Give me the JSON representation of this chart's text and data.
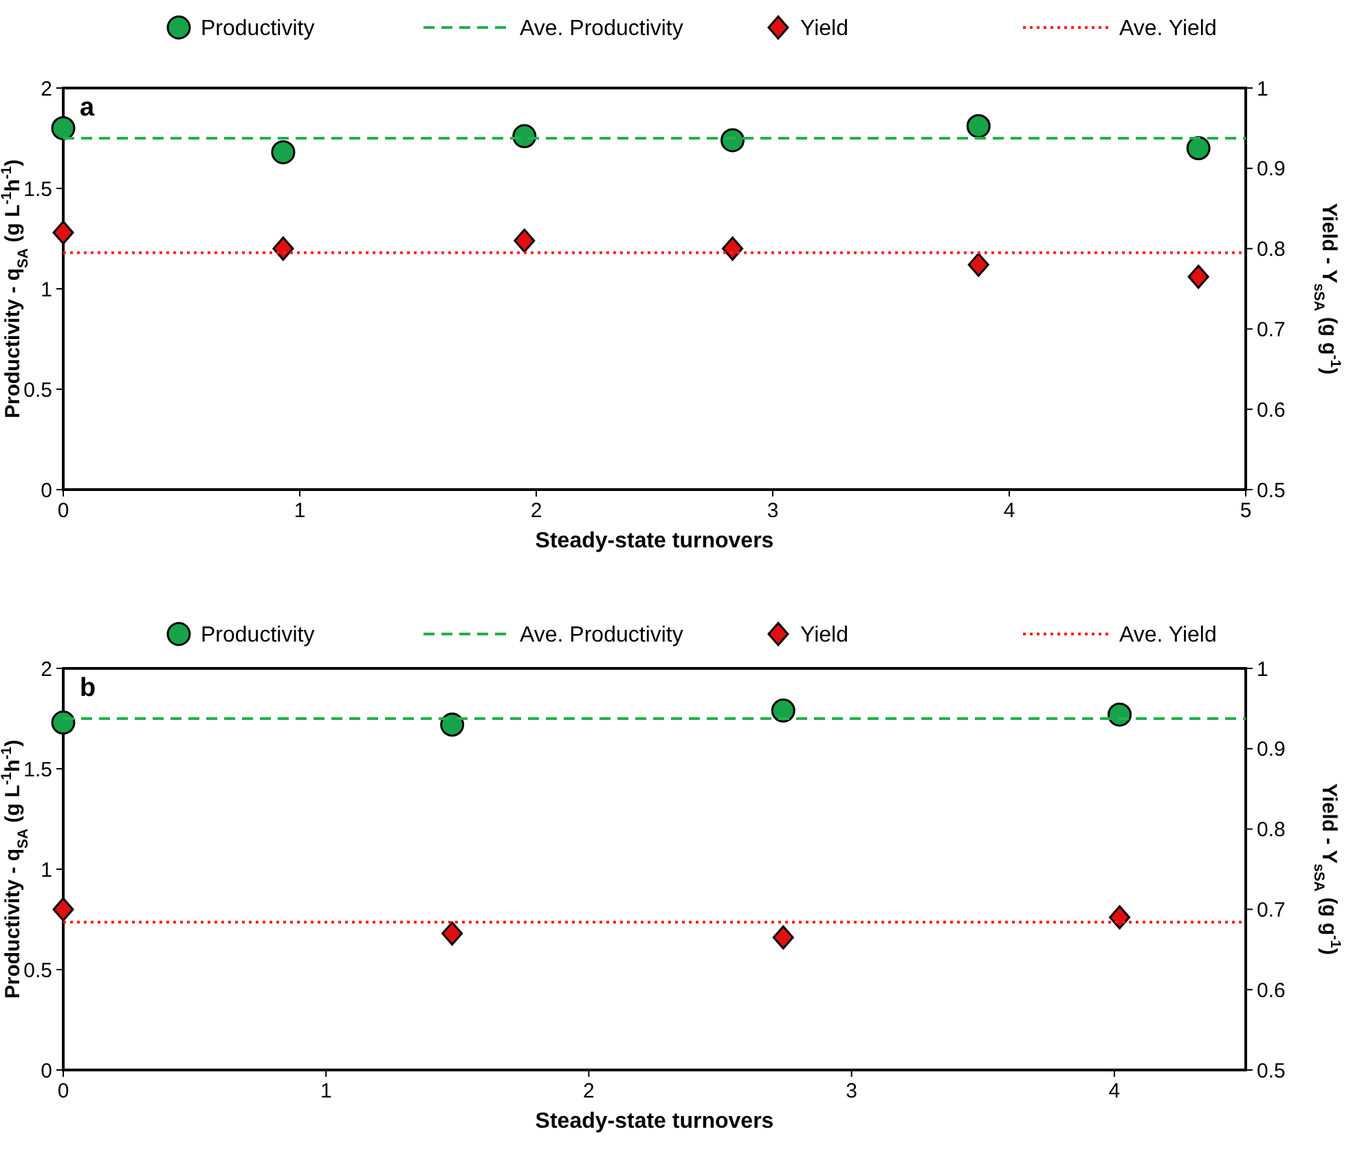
{
  "chart_data": [
    {
      "type": "scatter",
      "title": "a",
      "xlabel": "Steady-state turnovers",
      "ylabel": "Productivity - q$_{SA}$ (g L$^{-1}$h$^{-1}$)",
      "y2label": "Yield - Y$_{sSA}$ (g g$^{-1}$)",
      "xlim": [
        0,
        5
      ],
      "xticks": [
        0,
        1,
        2,
        3,
        4,
        5
      ],
      "ylim": [
        0,
        2
      ],
      "yticks": [
        0,
        0.5,
        1,
        1.5,
        2
      ],
      "y2lim": [
        0.5,
        1
      ],
      "y2ticks": [
        0.5,
        0.6,
        0.7,
        0.8,
        0.9,
        1
      ],
      "grid": false,
      "legend": "top",
      "series": [
        {
          "name": "Productivity",
          "marker": "circle",
          "color": "#17a34a",
          "x": [
            0,
            0.93,
            1.95,
            2.83,
            3.87,
            4.8
          ],
          "values": [
            1.8,
            1.68,
            1.76,
            1.74,
            1.81,
            1.7
          ]
        },
        {
          "name": "Ave. Productivity",
          "type": "line",
          "line_style": "dashed",
          "color": "#22b14c",
          "x": [
            0,
            5
          ],
          "values": [
            1.75,
            1.75
          ]
        },
        {
          "name": "Yield",
          "marker": "diamond",
          "axis": "y2",
          "color": "#e01010",
          "x": [
            0,
            0.93,
            1.95,
            2.83,
            3.87,
            4.8
          ],
          "values": [
            0.82,
            0.8,
            0.81,
            0.8,
            0.78,
            0.765
          ]
        },
        {
          "name": "Ave. Yield",
          "type": "line",
          "line_style": "dotted",
          "axis": "y2",
          "color": "#ff2020",
          "x": [
            0,
            5
          ],
          "values": [
            0.795,
            0.795
          ]
        }
      ]
    },
    {
      "type": "scatter",
      "title": "b",
      "xlabel": "Steady-state turnovers",
      "ylabel": "Productivity - q$_{SA}$ (g L$^{-1}$h$^{-1}$)",
      "y2label": "Yield - Y$_{sSA}$ (g g$^{-1}$)",
      "xlim": [
        0,
        4.5
      ],
      "xticks": [
        0,
        1,
        2,
        3,
        4
      ],
      "ylim": [
        0,
        2
      ],
      "yticks": [
        0,
        0.5,
        1,
        1.5,
        2
      ],
      "y2lim": [
        0.5,
        1
      ],
      "y2ticks": [
        0.5,
        0.6,
        0.7,
        0.8,
        0.9,
        1
      ],
      "grid": false,
      "legend": "top",
      "series": [
        {
          "name": "Productivity",
          "marker": "circle",
          "color": "#17a34a",
          "x": [
            0,
            1.48,
            2.74,
            4.02
          ],
          "values": [
            1.73,
            1.72,
            1.79,
            1.77
          ]
        },
        {
          "name": "Ave. Productivity",
          "type": "line",
          "line_style": "dashed",
          "color": "#22b14c",
          "x": [
            0,
            4.5
          ],
          "values": [
            1.75,
            1.75
          ]
        },
        {
          "name": "Yield",
          "marker": "diamond",
          "axis": "y2",
          "color": "#e01010",
          "x": [
            0,
            1.48,
            2.74,
            4.02
          ],
          "values": [
            0.7,
            0.67,
            0.665,
            0.69
          ]
        },
        {
          "name": "Ave. Yield",
          "type": "line",
          "line_style": "dotted",
          "axis": "y2",
          "color": "#ff2020",
          "x": [
            0,
            4.5
          ],
          "values": [
            0.684,
            0.684
          ]
        }
      ]
    }
  ]
}
